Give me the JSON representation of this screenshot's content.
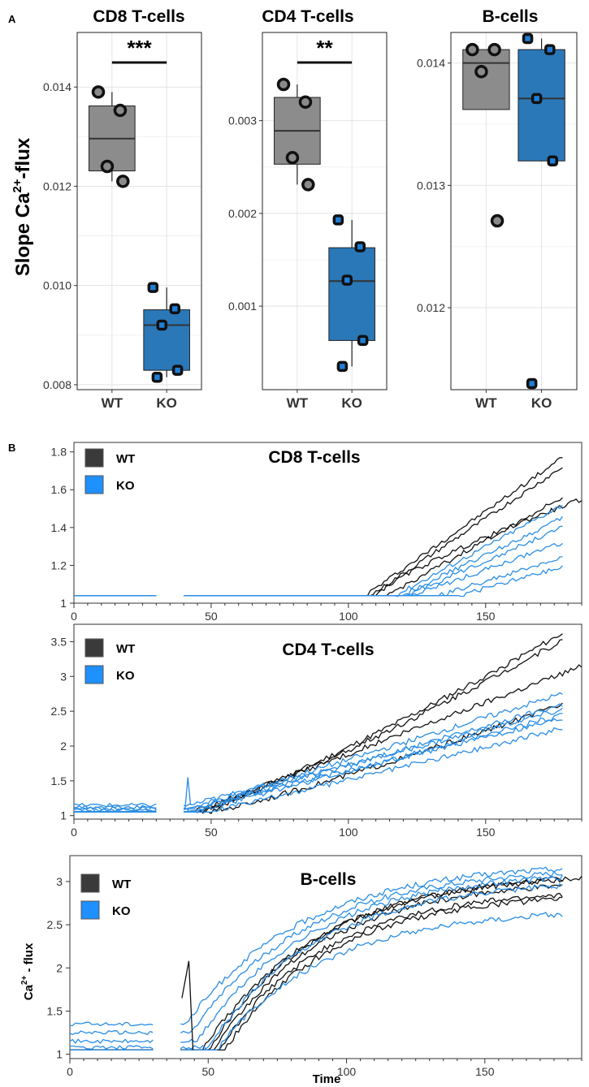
{
  "colors": {
    "wt_box": "#8c8c8c",
    "ko_box": "#2a78b8",
    "wt_line": "#111111",
    "ko_line": "#2a8ee6",
    "wt_legend": "#3a3a3a",
    "ko_legend": "#1e90ff"
  },
  "panel_a": {
    "label": "A",
    "ylabel_prefix": "Slope Ca",
    "ylabel_sup": "2+",
    "ylabel_suffix": "-flux"
  },
  "panel_b": {
    "label": "B",
    "ylabel_prefix": "Ca",
    "ylabel_sup": "2+",
    "ylabel_suffix": " - flux",
    "xlabel": "Time"
  },
  "chart_data": [
    {
      "type": "box",
      "title": "CD8 T-cells",
      "categories": [
        "WT",
        "KO"
      ],
      "ylim": [
        0.0079,
        0.0151
      ],
      "yticks": [
        0.008,
        0.01,
        0.012,
        0.014
      ],
      "ytick_labels": [
        "0.008",
        "0.010",
        "0.012",
        "0.014"
      ],
      "significance": "***",
      "groups": [
        {
          "name": "WT",
          "q1": 0.01231,
          "median": 0.01296,
          "q3": 0.01362,
          "whisker_low": 0.0121,
          "whisker_high": 0.0139,
          "points": [
            0.0139,
            0.01353,
            0.0124,
            0.0121
          ]
        },
        {
          "name": "KO",
          "q1": 0.00829,
          "median": 0.0092,
          "q3": 0.00951,
          "whisker_low": 0.00815,
          "whisker_high": 0.00996,
          "points": [
            0.00996,
            0.00953,
            0.0092,
            0.00829,
            0.00815
          ]
        }
      ]
    },
    {
      "type": "box",
      "title": "CD4 T-cells",
      "categories": [
        "WT",
        "KO"
      ],
      "ylim": [
        0.0001,
        0.00395
      ],
      "yticks": [
        0.001,
        0.002,
        0.003
      ],
      "ytick_labels": [
        "0.001",
        "0.002",
        "0.003"
      ],
      "significance": "**",
      "groups": [
        {
          "name": "WT",
          "q1": 0.00253,
          "median": 0.00289,
          "q3": 0.00325,
          "whisker_low": 0.00231,
          "whisker_high": 0.00339,
          "points": [
            0.00339,
            0.0032,
            0.0026,
            0.00231
          ]
        },
        {
          "name": "KO",
          "q1": 0.00063,
          "median": 0.00127,
          "q3": 0.00163,
          "whisker_low": 0.00035,
          "whisker_high": 0.00193,
          "points": [
            0.00193,
            0.00164,
            0.00128,
            0.00063,
            0.00035
          ]
        }
      ]
    },
    {
      "type": "box",
      "title": "B-cells",
      "categories": [
        "WT",
        "KO"
      ],
      "ylim": [
        0.01133,
        0.01425
      ],
      "yticks": [
        0.012,
        0.013,
        0.014
      ],
      "ytick_labels": [
        "0.012",
        "0.013",
        "0.014"
      ],
      "significance": "",
      "groups": [
        {
          "name": "WT",
          "q1": 0.01362,
          "median": 0.014,
          "q3": 0.01411,
          "whisker_low": 0.01362,
          "whisker_high": 0.01411,
          "points": [
            0.01411,
            0.01411,
            0.01393,
            0.01271
          ]
        },
        {
          "name": "KO",
          "q1": 0.0132,
          "median": 0.01371,
          "q3": 0.01411,
          "whisker_low": 0.0132,
          "whisker_high": 0.0142,
          "points": [
            0.0142,
            0.01411,
            0.01371,
            0.0132,
            0.01138
          ]
        }
      ]
    },
    {
      "type": "line",
      "title": "CD8 T-cells",
      "xlim": [
        0,
        185
      ],
      "ylim": [
        1.0,
        1.85
      ],
      "xticks": [
        0,
        50,
        100,
        150
      ],
      "yticks": [
        1,
        1.2,
        1.4,
        1.6,
        1.8
      ],
      "ytick_labels": [
        "1",
        "1.2",
        "1.4",
        "1.6",
        "1.8"
      ],
      "legend": [
        "WT",
        "KO"
      ],
      "gaps": [
        [
          30,
          40
        ]
      ],
      "series": [
        {
          "name": "WT",
          "baseline": 1.04,
          "start": 106,
          "curve": "linear",
          "end": 1.77,
          "end_x": 178
        },
        {
          "name": "WT",
          "baseline": 1.04,
          "start": 108,
          "curve": "linear",
          "end": 1.72,
          "end_x": 178
        },
        {
          "name": "WT",
          "baseline": 1.04,
          "start": 110,
          "curve": "concave",
          "end": 1.55,
          "end_x": 185
        },
        {
          "name": "WT",
          "baseline": 1.04,
          "start": 114,
          "curve": "linear",
          "end": 1.56,
          "end_x": 178
        },
        {
          "name": "KO",
          "baseline": 1.04,
          "start": 117,
          "curve": "linear",
          "end": 1.52,
          "end_x": 178
        },
        {
          "name": "KO",
          "baseline": 1.04,
          "start": 119,
          "curve": "linear",
          "end": 1.45,
          "end_x": 178
        },
        {
          "name": "KO",
          "baseline": 1.04,
          "start": 121,
          "curve": "linear",
          "end": 1.4,
          "end_x": 178
        },
        {
          "name": "KO",
          "baseline": 1.04,
          "start": 123,
          "curve": "linear",
          "end": 1.32,
          "end_x": 178
        },
        {
          "name": "KO",
          "baseline": 1.04,
          "start": 133,
          "curve": "linear",
          "end": 1.24,
          "end_x": 178
        },
        {
          "name": "KO",
          "baseline": 1.04,
          "start": 140,
          "curve": "linear",
          "end": 1.19,
          "end_x": 178
        }
      ]
    },
    {
      "type": "line",
      "title": "CD4 T-cells",
      "xlim": [
        0,
        185
      ],
      "ylim": [
        0.95,
        3.75
      ],
      "xticks": [
        0,
        50,
        100,
        150
      ],
      "yticks": [
        1,
        1.5,
        2,
        2.5,
        3,
        3.5
      ],
      "ytick_labels": [
        "1",
        "1.5",
        "2",
        "2.5",
        "3",
        "3.5"
      ],
      "legend": [
        "WT",
        "KO"
      ],
      "gaps": [
        [
          30,
          40
        ]
      ],
      "series": [
        {
          "name": "WT",
          "baseline": 1.05,
          "start": 45,
          "curve": "convex",
          "end": 3.62,
          "end_x": 178
        },
        {
          "name": "WT",
          "baseline": 1.05,
          "start": 45,
          "curve": "convex",
          "end": 3.52,
          "end_x": 178
        },
        {
          "name": "WT",
          "baseline": 1.05,
          "start": 44,
          "curve": "linear",
          "end": 3.15,
          "end_x": 185
        },
        {
          "name": "WT",
          "baseline": 1.05,
          "start": 49,
          "curve": "convex",
          "end": 2.6,
          "end_x": 178
        },
        {
          "name": "KO",
          "baseline": 1.1,
          "start": 42,
          "curve": "linear",
          "end": 2.75,
          "end_x": 178
        },
        {
          "name": "KO",
          "baseline": 1.08,
          "start": 43,
          "curve": "linear",
          "end": 2.6,
          "end_x": 178
        },
        {
          "name": "KO",
          "baseline": 1.15,
          "start": 42,
          "curve": "linear",
          "end": 2.52,
          "end_x": 178
        },
        {
          "name": "KO",
          "baseline": 1.06,
          "start": 44,
          "curve": "linear",
          "end": 2.45,
          "end_x": 178
        },
        {
          "name": "KO",
          "baseline": 1.12,
          "start": 45,
          "curve": "linear",
          "end": 2.4,
          "end_x": 178
        },
        {
          "name": "KO",
          "baseline": 1.05,
          "start": 50,
          "curve": "linear",
          "end": 2.25,
          "end_x": 178
        }
      ]
    },
    {
      "type": "line",
      "title": "B-cells",
      "xlim": [
        0,
        185
      ],
      "ylim": [
        0.95,
        3.3
      ],
      "xticks": [
        0,
        50,
        100,
        150
      ],
      "yticks": [
        1,
        1.5,
        2,
        2.5,
        3
      ],
      "ytick_labels": [
        "1",
        "1.5",
        "2",
        "2.5",
        "3"
      ],
      "legend": [
        "WT",
        "KO"
      ],
      "xlabel": "Time",
      "gaps": [
        [
          30,
          40
        ]
      ],
      "series": [
        {
          "name": "WT",
          "baseline": 1.05,
          "start": 48,
          "curve": "saturating",
          "end": 3.05,
          "end_x": 185
        },
        {
          "name": "WT",
          "baseline": 1.05,
          "start": 50,
          "curve": "saturating",
          "end": 3.02,
          "end_x": 178
        },
        {
          "name": "WT",
          "baseline": 1.05,
          "start": 52,
          "curve": "saturating",
          "end": 2.95,
          "end_x": 178
        },
        {
          "name": "WT",
          "baseline": 1.05,
          "start": 54,
          "curve": "saturating",
          "end": 2.85,
          "end_x": 178
        },
        {
          "name": "WT",
          "baseline": 1.05,
          "start": 56,
          "curve": "saturating",
          "end": 2.8,
          "end_x": 178
        },
        {
          "name": "KO",
          "baseline": 1.35,
          "start": 42,
          "curve": "saturating",
          "end": 3.15,
          "end_x": 178
        },
        {
          "name": "KO",
          "baseline": 1.25,
          "start": 44,
          "curve": "saturating",
          "end": 3.1,
          "end_x": 178
        },
        {
          "name": "KO",
          "baseline": 1.15,
          "start": 46,
          "curve": "saturating",
          "end": 3.05,
          "end_x": 178
        },
        {
          "name": "KO",
          "baseline": 1.08,
          "start": 50,
          "curve": "saturating",
          "end": 2.95,
          "end_x": 178
        },
        {
          "name": "KO",
          "baseline": 1.05,
          "start": 53,
          "curve": "saturating",
          "end": 2.62,
          "end_x": 178
        }
      ]
    }
  ]
}
